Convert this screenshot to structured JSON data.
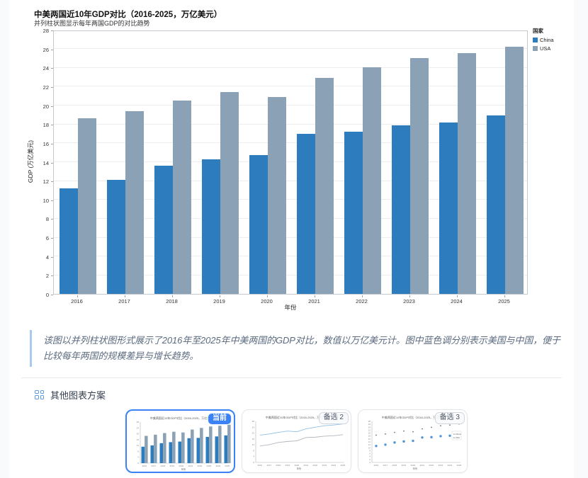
{
  "chart_data": {
    "type": "bar",
    "title": "中美两国近10年GDP对比（2016-2025，万亿美元）",
    "subtitle": "并列柱状图显示每年两国GDP的对比趋势",
    "xlabel": "年份",
    "ylabel": "GDP (万亿美元)",
    "legend_title": "国家",
    "ylim": [
      0,
      28
    ],
    "ytick_step": 2,
    "grid": true,
    "legend_position": "outside-top-right",
    "categories": [
      "2016",
      "2017",
      "2018",
      "2019",
      "2020",
      "2021",
      "2022",
      "2023",
      "2024",
      "2025"
    ],
    "series": [
      {
        "name": "China",
        "color": "#2c7cbe",
        "values": [
          11.2,
          12.1,
          13.6,
          14.3,
          14.7,
          17.0,
          17.2,
          17.9,
          18.2,
          18.9
        ]
      },
      {
        "name": "USA",
        "color": "#8ba1b5",
        "values": [
          18.6,
          19.4,
          20.5,
          21.4,
          20.9,
          22.9,
          24.0,
          25.0,
          25.5,
          26.2
        ]
      }
    ]
  },
  "description": "该图以并列柱状图形式展示了2016年至2025年中美两国的GDP对比，数值以万亿美元计。图中蓝色调分别表示美国与中国，便于比较每年两国的规模差异与增长趋势。",
  "alternatives": {
    "section_title": "其他图表方案",
    "items": [
      {
        "badge": "当前",
        "type": "bar",
        "active": true
      },
      {
        "badge": "备选 2",
        "type": "line",
        "active": false
      },
      {
        "badge": "备选 3",
        "type": "scatter",
        "active": false
      }
    ]
  },
  "colors": {
    "accent": "#3b82f6",
    "quote_border": "#a9c9ee",
    "page_bg": "#f8fafc"
  }
}
